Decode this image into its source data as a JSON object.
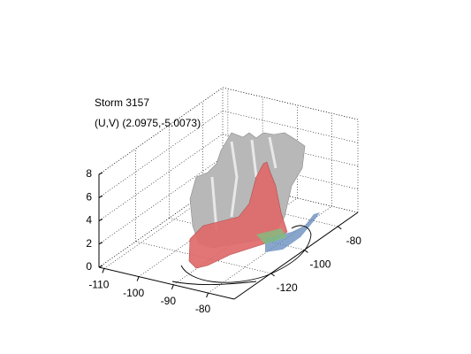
{
  "chart_data": {
    "type": "isosurface3d",
    "title": "Storm 3157",
    "subtitle": "(U,V) (2.0975,-5.0073)",
    "xlim": [
      -111.5,
      -72.5
    ],
    "xticks": [
      -110,
      -100,
      -90,
      -80
    ],
    "ylim": [
      -142,
      -68
    ],
    "yticks": [
      -120,
      -100,
      -80
    ],
    "zlim": [
      0,
      8
    ],
    "zticks": [
      0,
      2,
      4,
      6,
      8
    ],
    "grid": true
  }
}
